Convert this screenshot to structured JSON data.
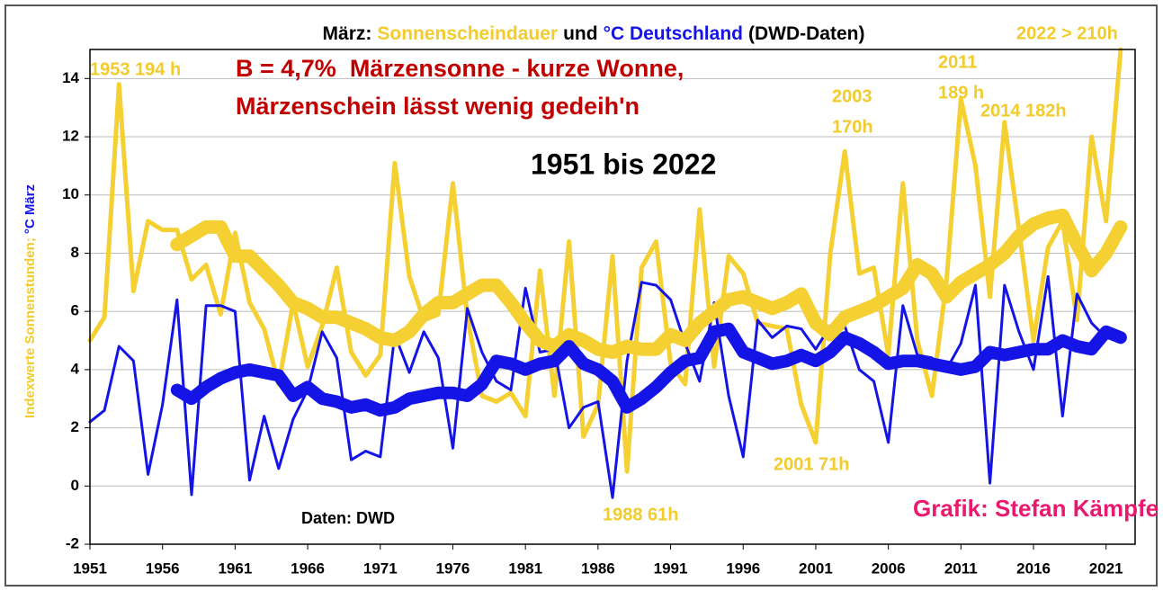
{
  "chart_data": {
    "type": "line",
    "title": [
      {
        "text": "März:",
        "color": "#000000"
      },
      {
        "text": "Sonnenscheindauer",
        "color": "#f2cb2c"
      },
      {
        "text": "und",
        "color": "#000000"
      },
      {
        "text": "°C Deutschland",
        "color": "#1414e6"
      },
      {
        "text": "(DWD-Daten)",
        "color": "#000000"
      }
    ],
    "y_label": [
      {
        "text": "Indexwerte Sonnenstunden;",
        "color": "#f2cb2c"
      },
      {
        "text": "°C März",
        "color": "#1414e6"
      }
    ],
    "annotations": [
      {
        "text": "2022 > 210h",
        "color": "#f2cb2c"
      },
      {
        "text": "1953 194 h",
        "color": "#f2cb2c"
      },
      {
        "text": "B = 4,7%  Märzensonne - kurze Wonne,",
        "color": "#c00000"
      },
      {
        "text": "Märzenschein lässt wenig gedeih'n",
        "color": "#c00000"
      },
      {
        "text": "1951 bis 2022",
        "color": "#000000"
      },
      {
        "text": "2003",
        "color": "#f2cb2c"
      },
      {
        "text": "170h",
        "color": "#f2cb2c"
      },
      {
        "text": "2011",
        "color": "#f2cb2c"
      },
      {
        "text": "189 h",
        "color": "#f2cb2c"
      },
      {
        "text": "2014 182h",
        "color": "#f2cb2c"
      },
      {
        "text": "2001 71h",
        "color": "#f2cb2c"
      },
      {
        "text": "1988 61h",
        "color": "#f2cb2c"
      },
      {
        "text": "Daten: DWD",
        "color": "#000000"
      },
      {
        "text": "Grafik: Stefan Kämpfe",
        "color": "#e8196e"
      }
    ],
    "x": [
      1951,
      1952,
      1953,
      1954,
      1955,
      1956,
      1957,
      1958,
      1959,
      1960,
      1961,
      1962,
      1963,
      1964,
      1965,
      1966,
      1967,
      1968,
      1969,
      1970,
      1971,
      1972,
      1973,
      1974,
      1975,
      1976,
      1977,
      1978,
      1979,
      1980,
      1981,
      1982,
      1983,
      1984,
      1985,
      1986,
      1987,
      1988,
      1989,
      1990,
      1991,
      1992,
      1993,
      1994,
      1995,
      1996,
      1997,
      1998,
      1999,
      2000,
      2001,
      2002,
      2003,
      2004,
      2005,
      2006,
      2007,
      2008,
      2009,
      2010,
      2011,
      2012,
      2013,
      2014,
      2015,
      2016,
      2017,
      2018,
      2019,
      2020,
      2021,
      2022
    ],
    "series": [
      {
        "color": "#f5d033",
        "width": 5,
        "values": [
          5.0,
          5.8,
          13.8,
          6.7,
          9.1,
          8.8,
          8.8,
          7.1,
          7.6,
          5.9,
          8.7,
          6.3,
          5.4,
          3.5,
          6.3,
          4.1,
          5.5,
          7.5,
          4.6,
          3.8,
          4.5,
          11.1,
          7.2,
          5.7,
          5.9,
          10.4,
          5.8,
          3.1,
          2.9,
          3.2,
          2.4,
          7.4,
          3.1,
          8.4,
          1.7,
          2.8,
          7.9,
          0.5,
          7.5,
          8.4,
          4.2,
          3.5,
          9.5,
          4.1,
          7.9,
          7.3,
          5.6,
          5.5,
          5.4,
          2.8,
          1.5,
          8.0,
          11.5,
          7.3,
          7.5,
          4.5,
          10.4,
          5.0,
          3.1,
          7.0,
          13.3,
          11.0,
          6.5,
          12.5,
          8.8,
          5.0,
          8.2,
          9.1,
          5.7,
          12.0,
          9.1,
          15.0
        ]
      },
      {
        "color": "#1414e6",
        "width": 3,
        "values": [
          2.2,
          2.6,
          4.8,
          4.3,
          0.4,
          2.8,
          6.4,
          -0.3,
          6.2,
          6.2,
          6.0,
          0.2,
          2.4,
          0.6,
          2.3,
          3.3,
          5.3,
          4.4,
          0.9,
          1.2,
          1.0,
          5.2,
          3.9,
          5.3,
          4.4,
          1.3,
          6.1,
          4.6,
          3.6,
          3.3,
          6.8,
          4.6,
          4.7,
          2.0,
          2.7,
          2.9,
          -0.4,
          4.3,
          7.0,
          6.9,
          6.4,
          4.9,
          3.6,
          6.3,
          3.1,
          1.0,
          5.7,
          5.1,
          5.5,
          5.4,
          4.7,
          5.5,
          5.5,
          4.0,
          3.6,
          1.5,
          6.2,
          4.5,
          4.4,
          4.0,
          4.9,
          6.9,
          0.1,
          6.9,
          5.3,
          4.0,
          7.2,
          2.4,
          6.6,
          5.6,
          5.1,
          5.0
        ]
      },
      {
        "color": "#f5d033",
        "width": 15,
        "values": [
          null,
          null,
          null,
          null,
          null,
          null,
          8.3,
          8.6,
          8.9,
          8.9,
          7.9,
          7.9,
          7.4,
          6.9,
          6.3,
          6.1,
          5.8,
          5.8,
          5.6,
          5.4,
          5.1,
          5.0,
          5.3,
          5.9,
          6.3,
          6.3,
          6.6,
          6.9,
          6.9,
          6.3,
          5.6,
          5.0,
          4.8,
          5.2,
          5.0,
          4.7,
          4.6,
          4.8,
          4.7,
          4.7,
          5.2,
          5.0,
          5.6,
          6.0,
          6.4,
          6.5,
          6.3,
          6.1,
          6.3,
          6.6,
          5.6,
          5.2,
          5.8,
          6.0,
          6.2,
          6.5,
          6.8,
          7.6,
          7.3,
          6.5,
          7.0,
          7.3,
          7.6,
          8.0,
          8.6,
          9.0,
          9.2,
          9.3,
          8.3,
          7.4,
          8.0,
          8.9
        ]
      },
      {
        "color": "#1414e6",
        "width": 14,
        "values": [
          null,
          null,
          null,
          null,
          null,
          null,
          3.3,
          3.0,
          3.4,
          3.7,
          3.9,
          4.0,
          3.9,
          3.8,
          3.1,
          3.4,
          3.0,
          2.9,
          2.7,
          2.8,
          2.6,
          2.7,
          3.0,
          3.1,
          3.2,
          3.2,
          3.1,
          3.5,
          4.3,
          4.2,
          4.0,
          4.2,
          4.3,
          4.8,
          4.2,
          4.0,
          3.6,
          2.7,
          3.0,
          3.4,
          3.9,
          4.3,
          4.4,
          5.3,
          5.4,
          4.6,
          4.4,
          4.2,
          4.3,
          4.5,
          4.3,
          4.6,
          5.1,
          4.9,
          4.6,
          4.2,
          4.3,
          4.3,
          4.2,
          4.1,
          4.0,
          4.1,
          4.6,
          4.5,
          4.6,
          4.7,
          4.7,
          5.0,
          4.8,
          4.7,
          5.3,
          5.1
        ]
      }
    ],
    "xlim": [
      1951,
      2023
    ],
    "xticks": [
      1951,
      1956,
      1961,
      1966,
      1971,
      1976,
      1981,
      1986,
      1991,
      1996,
      2001,
      2006,
      2011,
      2016,
      2021
    ],
    "ylim": [
      -2,
      15
    ],
    "yticks": [
      -2,
      0,
      2,
      4,
      6,
      8,
      10,
      12,
      14
    ],
    "grid": true
  }
}
